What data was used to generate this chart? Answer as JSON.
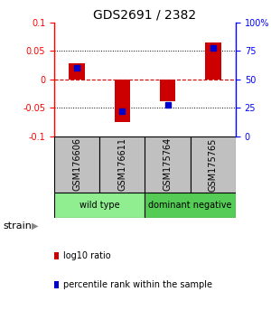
{
  "title": "GDS2691 / 2382",
  "samples": [
    "GSM176606",
    "GSM176611",
    "GSM175764",
    "GSM175765"
  ],
  "log10_ratio": [
    0.028,
    -0.075,
    -0.038,
    0.065
  ],
  "percentile_rank": [
    0.6,
    0.22,
    0.28,
    0.775
  ],
  "groups": [
    {
      "label": "wild type",
      "samples": [
        0,
        1
      ],
      "color": "#90EE90"
    },
    {
      "label": "dominant negative",
      "samples": [
        2,
        3
      ],
      "color": "#55CC55"
    }
  ],
  "group_label": "strain",
  "ylim_left": [
    -0.1,
    0.1
  ],
  "yticks_left": [
    -0.1,
    -0.05,
    0,
    0.05,
    0.1
  ],
  "ytick_labels_left": [
    "-0.1",
    "-0.05",
    "0",
    "0.05",
    "0.1"
  ],
  "ytick_labels_right": [
    "0",
    "25",
    "50",
    "75",
    "100%"
  ],
  "bar_color": "#CC0000",
  "dot_color": "#0000CC",
  "sample_box_color": "#C0C0C0",
  "bar_width": 0.35,
  "dot_size": 5
}
